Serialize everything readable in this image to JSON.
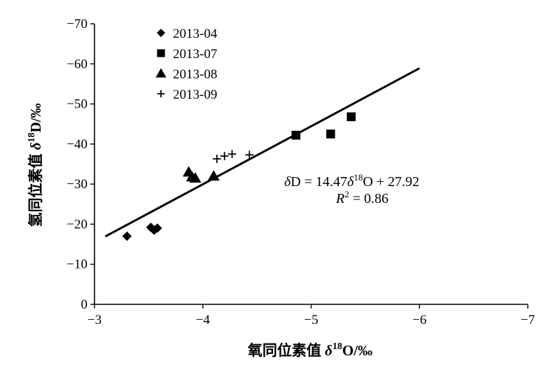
{
  "chart_data": {
    "type": "scatter",
    "xlabel": "氧同位素值 δ18O/‰",
    "xlabel_parts": {
      "main": "氧同位素值 ",
      "delta": "δ",
      "sup": "18",
      "rest": "O/‰"
    },
    "ylabel": "氢同位素值 δ18D/‰",
    "ylabel_parts": {
      "main": "氢同位素值 ",
      "delta": "δ",
      "sup": "18",
      "rest": "D/‰"
    },
    "xlim": [
      -3,
      -7
    ],
    "ylim": [
      0,
      -70
    ],
    "x_reversed": true,
    "y_reversed": true,
    "x_ticks": [
      -3,
      -4,
      -5,
      -6,
      -7
    ],
    "y_ticks": [
      0,
      -10,
      -20,
      -30,
      -40,
      -50,
      -60,
      -70
    ],
    "x_tick_labels": [
      "−3",
      "−4",
      "−5",
      "−6",
      "−7"
    ],
    "y_tick_labels": [
      "0",
      "−10",
      "−20",
      "−30",
      "−40",
      "−50",
      "−60",
      "−70"
    ],
    "grid": false,
    "legend_position": "top-left",
    "series": [
      {
        "name": "2013-04",
        "marker": "diamond",
        "points": [
          [
            -3.3,
            -17
          ],
          [
            -3.52,
            -19.2
          ],
          [
            -3.55,
            -18.5
          ],
          [
            -3.58,
            -19
          ]
        ]
      },
      {
        "name": "2013-07",
        "marker": "square",
        "points": [
          [
            -4.86,
            -42.2
          ],
          [
            -5.18,
            -42.5
          ],
          [
            -5.37,
            -46.8
          ]
        ]
      },
      {
        "name": "2013-08",
        "marker": "triangle",
        "points": [
          [
            -3.87,
            -33
          ],
          [
            -3.9,
            -31.8
          ],
          [
            -3.93,
            -31.5
          ],
          [
            -4.1,
            -32
          ]
        ]
      },
      {
        "name": "2013-09",
        "marker": "plus",
        "points": [
          [
            -4.13,
            -36.3
          ],
          [
            -4.2,
            -37
          ],
          [
            -4.27,
            -37.5
          ],
          [
            -4.43,
            -37.3
          ]
        ]
      }
    ],
    "trendline": {
      "slope": 14.47,
      "intercept": 27.92,
      "x_range": [
        -3.1,
        -6.0
      ]
    },
    "annotation": {
      "equation": {
        "delta1": "δ",
        "part1": "D = 14.47",
        "delta2": "δ",
        "sup": "18",
        "part2": "O + 27.92"
      },
      "r2": {
        "r": "R",
        "sup": "2",
        "rest": " = 0.86"
      }
    }
  }
}
